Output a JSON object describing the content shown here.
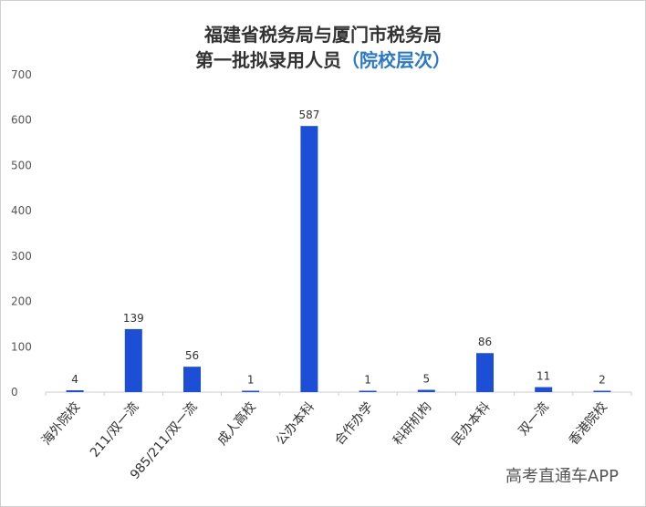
{
  "chart_data": {
    "type": "bar",
    "title_line1": "福建省税务局与厦门市税务局",
    "title_line2": "第一批拟录用人员",
    "title_highlight": "（院校层次）",
    "categories": [
      "海外院校",
      "211/双一流",
      "985/211/双一流",
      "成人高校",
      "公办本科",
      "合作办学",
      "科研机构",
      "民办本科",
      "双一流",
      "香港院校"
    ],
    "values": [
      4,
      139,
      56,
      1,
      587,
      1,
      5,
      86,
      11,
      2
    ],
    "yticks": [
      0,
      100,
      200,
      300,
      400,
      500,
      600,
      700
    ],
    "ylim": [
      0,
      700
    ],
    "bar_color": "#1d4fd6",
    "grid": false
  },
  "watermark": "高考直通车APP"
}
